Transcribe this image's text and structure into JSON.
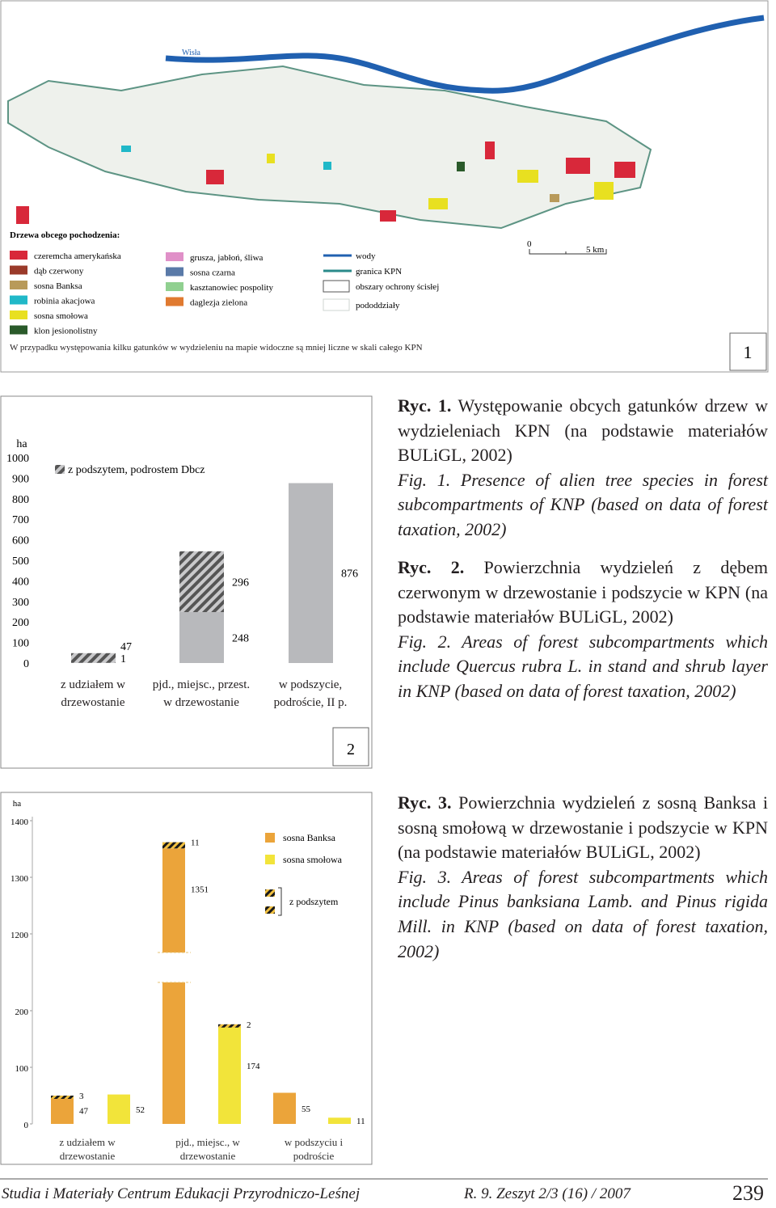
{
  "map": {
    "river_label": "Wisła",
    "legend_title": "Drzewa obcego pochodzenia:",
    "species": [
      {
        "label": "czeremcha amerykańska",
        "color": "#d8283a"
      },
      {
        "label": "dąb czerwony",
        "color": "#9a3a2a"
      },
      {
        "label": "sosna Banksa",
        "color": "#b89a5a"
      },
      {
        "label": "robinia akacjowa",
        "color": "#20b8c8"
      },
      {
        "label": "sosna smołowa",
        "color": "#e8e020"
      },
      {
        "label": "klon jesionolistny",
        "color": "#2a5a2a"
      },
      {
        "label": "grusza, jabłoń, śliwa",
        "color": "#e090c8"
      },
      {
        "label": "sosna czarna",
        "color": "#5a7aa8"
      },
      {
        "label": "kasztanowiec pospolity",
        "color": "#90d090"
      },
      {
        "label": "daglezja zielona",
        "color": "#e07a30"
      }
    ],
    "lines": [
      {
        "label": "wody",
        "color": "#2060b0"
      },
      {
        "label": "granica KPN",
        "color": "#2a8a8a"
      }
    ],
    "areas": [
      {
        "label": "obszary ochrony ścisłej",
        "color": "#555555"
      },
      {
        "label": "pododdziały",
        "color": "#cfd6d0"
      }
    ],
    "scale": [
      "0",
      "5 km"
    ],
    "note": "W przypadku występowania kilku gatunków w wydzieleniu na mapie widoczne są mniej liczne w skali całego KPN",
    "figure_number": "1"
  },
  "chart_data": [
    {
      "type": "bar",
      "unit": "ha",
      "figure_number": "2",
      "categories": [
        "z udziałem w drzewostanie",
        "pjd., miejsc., przest. w drzewostanie",
        "w podszycie, podroście, II p."
      ],
      "series": [
        {
          "color": "#b8b9bc",
          "values": [
            1,
            248,
            876
          ]
        },
        {
          "name": "z podszytem, podrostem Dbcz",
          "color": "#555555",
          "pattern": "hatch",
          "values": [
            47,
            296,
            null
          ]
        }
      ],
      "stacked": true,
      "ylim": [
        0,
        1000
      ],
      "yticks": [
        0,
        100,
        200,
        300,
        400,
        500,
        600,
        700,
        800,
        900,
        1000
      ]
    },
    {
      "type": "bar",
      "unit": "ha",
      "categories": [
        "z udziałem w drzewostanie",
        "pjd., miejsc., w drzewostanie",
        "w podszyciu i podroście"
      ],
      "series": [
        {
          "name": "sosna Banksa",
          "color": "#eba43a",
          "values": [
            47,
            1351,
            55
          ],
          "podszyt": [
            3,
            11,
            null
          ]
        },
        {
          "name": "sosna smołowa",
          "color": "#f2e43a",
          "values": [
            52,
            174,
            11
          ],
          "podszyt": [
            null,
            2,
            null
          ]
        }
      ],
      "podszyt_label": "z podszytem",
      "ylim": [
        0,
        1400
      ],
      "axis_break": [
        200,
        1200
      ],
      "yticks": [
        0,
        100,
        200,
        1200,
        1300,
        1400
      ]
    }
  ],
  "captions": [
    {
      "label": "Ryc. 1.",
      "text": "Występowanie obcych gatunków drzew w wydzieleniach KPN (na podstawie materiałów BULiGL, 2002)"
    },
    {
      "label": "Fig. 1.",
      "text": "Presence of alien tree species in forest subcompartments of KNP (based on data of forest taxation, 2002)"
    },
    {
      "label": "Ryc. 2.",
      "text": "Powierzchnia wydzieleń z dębem czerwonym w drzewostanie i podszycie w KPN (na podstawie materiałów BULiGL, 2002)"
    },
    {
      "label": "Fig. 2.",
      "text": "Areas of forest subcompartments which include Quercus rubra L. in stand and shrub layer in KNP (based on data of forest taxation, 2002)"
    },
    {
      "label": "Ryc. 3.",
      "text": "Powierzchnia wydzieleń z sosną Banksa i sosną smołową w drzewostanie i podszycie w KPN (na podstawie materiałów BULiGL, 2002)"
    },
    {
      "label": "Fig. 3.",
      "text": "Areas of forest subcompartments which include Pinus banksiana Lamb. and Pinus rigida Mill. in KNP (based on data of forest taxation, 2002)"
    }
  ],
  "footer": {
    "journal": "Studia i Materiały Centrum Edukacji Przyrodniczo-Leśnej",
    "issue": "R. 9. Zeszyt 2/3 (16) / 2007",
    "page": "239"
  }
}
